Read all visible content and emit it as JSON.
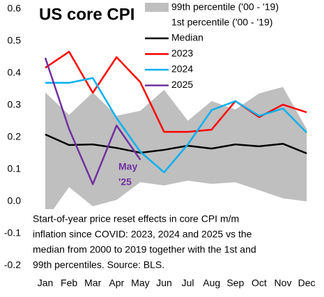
{
  "chart_data": {
    "type": "line",
    "title": "US core CPI",
    "categories": [
      "Jan",
      "Feb",
      "Mar",
      "Apr",
      "May",
      "Jun",
      "Jul",
      "Aug",
      "Sep",
      "Oct",
      "Nov",
      "Dec"
    ],
    "band": {
      "color": "#bfbfbf",
      "upper": {
        "name": "99th percentile ('00 - '19)",
        "values": [
          0.34,
          0.27,
          0.34,
          0.267,
          0.283,
          0.348,
          0.252,
          0.313,
          0.287,
          0.337,
          0.357,
          0.226
        ]
      },
      "lower": {
        "name": "1st percentile ('00 - '19)",
        "values": [
          -0.06,
          0.045,
          -0.015,
          0.005,
          0.06,
          0.05,
          0.065,
          0.055,
          0.06,
          0.035,
          0.01,
          0.0
        ]
      }
    },
    "series": [
      {
        "name": "Median",
        "color": "#000000",
        "values": [
          0.209,
          0.176,
          0.178,
          0.167,
          0.152,
          0.161,
          0.174,
          0.165,
          0.178,
          0.172,
          0.18,
          0.15
        ]
      },
      {
        "name": "2023",
        "color": "#ff0000",
        "values": [
          0.417,
          0.467,
          0.339,
          0.45,
          0.372,
          0.217,
          0.217,
          0.224,
          0.313,
          0.263,
          0.302,
          0.278
        ]
      },
      {
        "name": "2024",
        "color": "#00b0f0",
        "values": [
          0.37,
          0.37,
          0.385,
          0.26,
          0.155,
          0.091,
          0.178,
          0.285,
          0.313,
          0.267,
          0.29,
          0.215
        ]
      },
      {
        "name": "2025",
        "color": "#7030a0",
        "values": [
          0.448,
          0.226,
          0.054,
          0.237,
          0.13,
          null,
          null,
          null,
          null,
          null,
          null,
          null
        ]
      }
    ],
    "annotation": [
      "May",
      "'25"
    ],
    "note": [
      "Start-of-year price reset effects in core CPI m/m",
      "inflation since COVID: 2023, 2024 and 2025 vs the",
      "median from 2000 to 2019 together with the 1st and",
      "99th percentiles. Source: BLS."
    ],
    "ylim": [
      -0.2,
      0.6
    ],
    "yticks": [
      -0.2,
      -0.1,
      {
        "value": 0,
        "label": "0.0"
      },
      0.1,
      0.2,
      0.3,
      0.4,
      0.5,
      0.6
    ]
  }
}
